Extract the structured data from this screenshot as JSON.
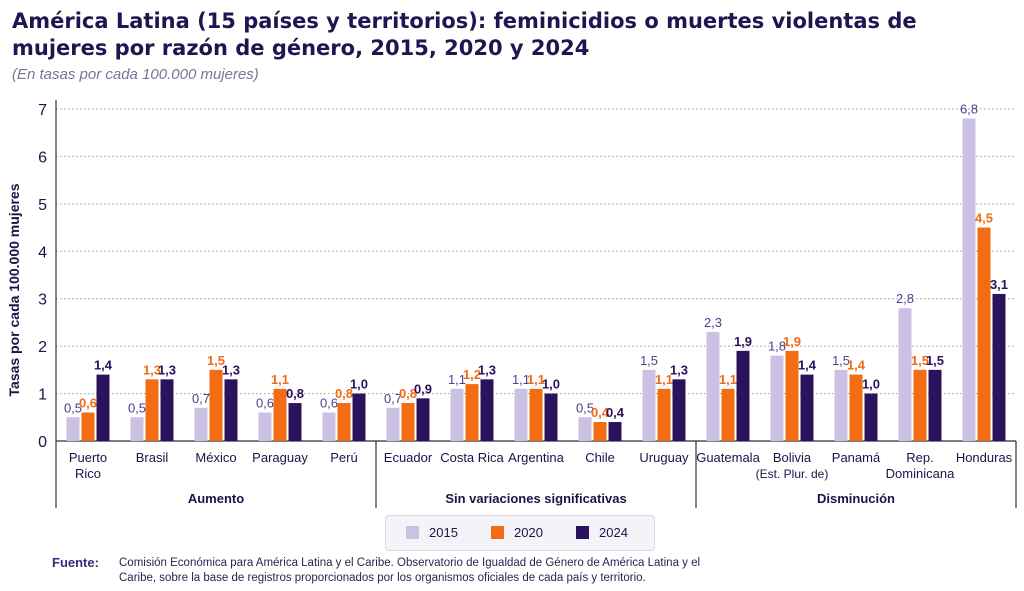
{
  "title": "América Latina (15 países y territorios): feminicidios o muertes violentas de mujeres por razón de género, 2015, 2020 y 2024",
  "subtitle": "(En tasas por cada 100.000 mujeres)",
  "source": {
    "label": "Fuente:",
    "text": "Comisión Económica para América Latina y el Caribe. Observatorio de Igualdad de Género de América Latina y el Caribe, sobre la base de registros proporcionados por los organismos oficiales de cada país y territorio."
  },
  "colors": {
    "2015": "#cbc1e3",
    "2020": "#f36b12",
    "2024": "#2c115f",
    "label_2015": "#4b3f95"
  },
  "chart_data": {
    "type": "bar",
    "ylabel": "Tasas por cada 100.000 mujeres",
    "ylim": [
      0,
      7
    ],
    "yticks": [
      "0",
      "1",
      "2",
      "3",
      "4",
      "5",
      "6",
      "7"
    ],
    "grid": true,
    "legend_position": "bottom-center",
    "categories": [
      "Puerto Rico",
      "Brasil",
      "México",
      "Paraguay",
      "Perú",
      "Ecuador",
      "Costa Rica",
      "Argentina",
      "Chile",
      "Uruguay",
      "Guatemala",
      "Bolivia (Est. Plur. de)",
      "Panamá",
      "Rep. Dominicana",
      "Honduras"
    ],
    "category_lines": [
      [
        "Puerto",
        "Rico"
      ],
      [
        "Brasil"
      ],
      [
        "México"
      ],
      [
        "Paraguay"
      ],
      [
        "Perú"
      ],
      [
        "Ecuador"
      ],
      [
        "Costa Rica"
      ],
      [
        "Argentina"
      ],
      [
        "Chile"
      ],
      [
        "Uruguay"
      ],
      [
        "Guatemala"
      ],
      [
        "Bolivia",
        "(Est. Plur. de)"
      ],
      [
        "Panamá"
      ],
      [
        "Rep.",
        "Dominicana"
      ],
      [
        "Honduras"
      ]
    ],
    "groups": [
      {
        "name": "Aumento",
        "start": 0,
        "end": 4
      },
      {
        "name": "Sin variaciones significativas",
        "start": 5,
        "end": 9
      },
      {
        "name": "Disminución",
        "start": 10,
        "end": 14
      }
    ],
    "series": [
      {
        "name": "2015",
        "values": [
          0.5,
          0.5,
          0.7,
          0.6,
          0.6,
          0.7,
          1.1,
          1.1,
          0.5,
          1.5,
          2.3,
          1.8,
          1.5,
          2.8,
          6.8
        ],
        "labels": [
          "0,5",
          "0,5",
          "0,7",
          "0,6",
          "0,6",
          "0,7",
          "1,1",
          "1,1",
          "0,5",
          "1,5",
          "2,3",
          "1,8",
          "1,5",
          "2,8",
          "6,8"
        ]
      },
      {
        "name": "2020",
        "values": [
          0.6,
          1.3,
          1.5,
          1.1,
          0.8,
          0.8,
          1.2,
          1.1,
          0.4,
          1.1,
          1.1,
          1.9,
          1.4,
          1.5,
          4.5
        ],
        "labels": [
          "0,6",
          "1,3",
          "1,5",
          "1,1",
          "0,8",
          "0,8",
          "1,2",
          "1,1",
          "0,4",
          "1,1",
          "1,1",
          "1,9",
          "1,4",
          "1,5",
          "4,5"
        ]
      },
      {
        "name": "2024",
        "values": [
          1.4,
          1.3,
          1.3,
          0.8,
          1.0,
          0.9,
          1.3,
          1.0,
          0.4,
          1.3,
          1.9,
          1.4,
          1.0,
          1.5,
          3.1
        ],
        "labels": [
          "1,4",
          "1,3",
          "1,3",
          "0,8",
          "1,0",
          "0,9",
          "1,3",
          "1,0",
          "0,4",
          "1,3",
          "1,9",
          "1,4",
          "1,0",
          "1,5",
          "3,1"
        ]
      }
    ]
  }
}
